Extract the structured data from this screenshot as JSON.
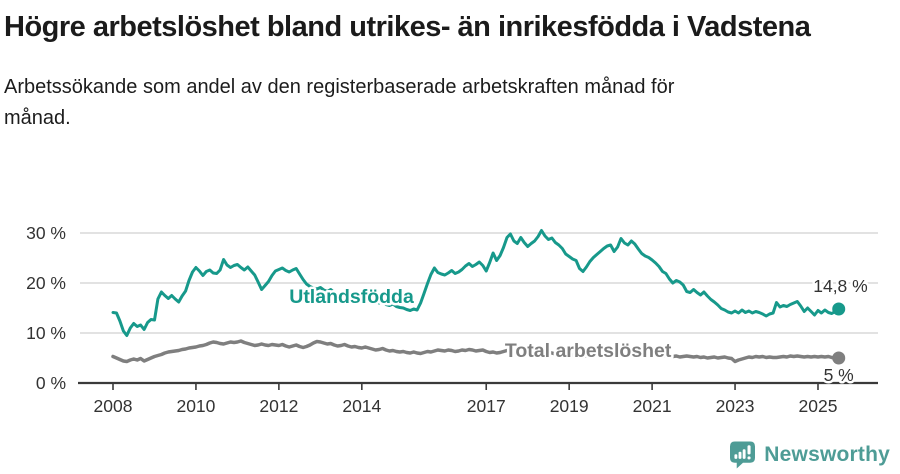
{
  "header": {
    "title": "Högre arbetslöshet bland utrikes- än inrikesfödda i Vadstena",
    "subtitle": "Arbetssökande som andel av den registerbaserade arbetskraften månad för månad."
  },
  "footer": {
    "brand": "Newsworthy",
    "brand_color": "#4e9c96"
  },
  "colors": {
    "series_foreign": "#17998b",
    "series_total": "#7f7f7f",
    "grid": "#d9d9d9",
    "axis": "#3a3a3a",
    "tick_label": "#333333",
    "value_label": "#333333"
  },
  "chart_data": {
    "type": "line",
    "title": "Högre arbetslöshet bland utrikes- än inrikesfödda i Vadstena",
    "subtitle": "Arbetssökande som andel av den registerbaserade arbetskraften månad för månad.",
    "grid": true,
    "legend_position": "inline-labels",
    "x_axis": {
      "start_year": 2008,
      "range": [
        2007.3,
        2026.4
      ],
      "ticks": [
        2008,
        2010,
        2012,
        2014,
        2017,
        2019,
        2021,
        2023,
        2025
      ],
      "tick_labels": [
        "2008",
        "2010",
        "2012",
        "2014",
        "2017",
        "2019",
        "2021",
        "2023",
        "2025"
      ]
    },
    "y_axis": {
      "range": [
        0,
        32
      ],
      "ticks": [
        0,
        10,
        20,
        30
      ],
      "tick_labels": [
        "0 %",
        "10 %",
        "20 %",
        "30 %"
      ],
      "unit": "%"
    },
    "series": [
      {
        "name": "Utlandsfödda",
        "color": "#17998b",
        "line_width": 3,
        "start_year": 2008,
        "points_per_year": 12,
        "last_value_label": "14,8 %",
        "end_label_offset": [
          29,
          -17
        ],
        "values": [
          14.1,
          14.0,
          12.4,
          10.4,
          9.5,
          11.0,
          11.9,
          11.3,
          11.6,
          10.7,
          12.1,
          12.7,
          12.6,
          16.8,
          18.2,
          17.5,
          16.9,
          17.5,
          16.8,
          16.2,
          17.4,
          18.4,
          20.5,
          22.2,
          23.1,
          22.4,
          21.5,
          22.3,
          22.6,
          22.0,
          21.9,
          22.6,
          24.7,
          23.6,
          23.1,
          23.5,
          23.7,
          23.1,
          22.6,
          23.2,
          22.4,
          21.6,
          20.2,
          18.7,
          19.5,
          20.3,
          21.5,
          22.4,
          22.7,
          23.0,
          22.5,
          22.2,
          22.6,
          22.9,
          21.8,
          20.7,
          19.8,
          19.3,
          19.0,
          18.8,
          19.1,
          18.6,
          18.3,
          18.7,
          18.1,
          17.8,
          18.0,
          17.5,
          17.2,
          17.6,
          17.1,
          17.4,
          17.1,
          16.7,
          16.4,
          16.8,
          16.3,
          16.0,
          16.2,
          15.7,
          15.5,
          15.8,
          15.3,
          15.1,
          15.0,
          14.7,
          14.5,
          14.8,
          14.6,
          16.0,
          17.9,
          19.9,
          21.7,
          23.0,
          22.1,
          21.8,
          21.6,
          22.0,
          22.5,
          21.9,
          22.2,
          22.7,
          23.4,
          23.9,
          23.3,
          23.7,
          24.2,
          23.5,
          22.4,
          24.1,
          26.0,
          24.5,
          25.5,
          27.1,
          29.1,
          29.8,
          28.4,
          27.9,
          29.1,
          28.1,
          27.3,
          27.9,
          28.4,
          29.3,
          30.5,
          29.4,
          28.7,
          29.0,
          28.1,
          27.6,
          26.9,
          25.8,
          25.3,
          24.8,
          24.5,
          22.9,
          22.3,
          23.2,
          24.3,
          25.1,
          25.7,
          26.3,
          26.9,
          27.4,
          27.6,
          26.3,
          27.2,
          28.9,
          28.0,
          27.6,
          28.4,
          27.8,
          26.8,
          25.9,
          25.4,
          25.1,
          24.6,
          24.0,
          23.3,
          22.3,
          21.9,
          20.8,
          20.0,
          20.5,
          20.2,
          19.6,
          18.3,
          18.1,
          18.7,
          18.1,
          17.6,
          18.2,
          17.4,
          16.7,
          16.2,
          15.6,
          14.9,
          14.6,
          14.2,
          14.0,
          14.4,
          14.0,
          14.6,
          14.1,
          14.4,
          14.0,
          14.3,
          14.1,
          13.8,
          13.4,
          13.8,
          14.0,
          16.1,
          15.2,
          15.5,
          15.3,
          15.7,
          16.0,
          16.3,
          15.4,
          14.3,
          15.0,
          14.3,
          13.6,
          14.5,
          14.0,
          14.6,
          14.1,
          13.9,
          14.3,
          14.8
        ]
      },
      {
        "name": "Total arbetslöshet",
        "color": "#7f7f7f",
        "line_width": 3.5,
        "start_year": 2008,
        "points_per_year": 12,
        "last_value_label": "5 %",
        "end_label_offset": [
          15,
          23
        ],
        "values": [
          5.3,
          5.0,
          4.7,
          4.4,
          4.3,
          4.6,
          4.8,
          4.6,
          4.9,
          4.4,
          4.7,
          5.0,
          5.3,
          5.5,
          5.7,
          6.0,
          6.2,
          6.3,
          6.4,
          6.5,
          6.7,
          6.8,
          7.0,
          7.1,
          7.2,
          7.4,
          7.5,
          7.7,
          8.0,
          8.2,
          8.1,
          7.9,
          7.8,
          8.0,
          8.2,
          8.1,
          8.2,
          8.4,
          8.1,
          7.9,
          7.7,
          7.5,
          7.6,
          7.8,
          7.6,
          7.5,
          7.7,
          7.6,
          7.5,
          7.7,
          7.4,
          7.2,
          7.4,
          7.6,
          7.3,
          7.1,
          7.3,
          7.6,
          8.0,
          8.3,
          8.2,
          8.0,
          7.8,
          7.9,
          7.6,
          7.4,
          7.5,
          7.7,
          7.4,
          7.2,
          7.3,
          7.1,
          7.0,
          7.2,
          7.0,
          6.8,
          6.6,
          6.7,
          6.9,
          6.6,
          6.4,
          6.5,
          6.3,
          6.2,
          6.3,
          6.1,
          6.0,
          6.2,
          6.0,
          5.9,
          6.1,
          6.3,
          6.2,
          6.4,
          6.6,
          6.5,
          6.4,
          6.6,
          6.5,
          6.3,
          6.4,
          6.6,
          6.5,
          6.7,
          6.6,
          6.4,
          6.5,
          6.6,
          6.3,
          6.1,
          6.2,
          6.0,
          6.1,
          6.3,
          6.5,
          6.4,
          6.2,
          6.3,
          6.1,
          6.2,
          6.0,
          5.9,
          6.1,
          6.0,
          5.8,
          5.9,
          6.1,
          6.0,
          5.8,
          5.7,
          5.8,
          5.6,
          5.5,
          5.6,
          5.4,
          5.5,
          5.3,
          5.4,
          5.6,
          5.7,
          5.5,
          5.6,
          5.8,
          5.9,
          6.0,
          5.9,
          6.1,
          6.4,
          6.3,
          6.5,
          6.6,
          6.4,
          6.3,
          6.1,
          6.0,
          5.9,
          5.8,
          5.7,
          5.6,
          5.5,
          5.4,
          5.5,
          5.3,
          5.4,
          5.2,
          5.3,
          5.4,
          5.3,
          5.2,
          5.3,
          5.1,
          5.2,
          5.0,
          5.1,
          5.2,
          5.0,
          5.1,
          5.2,
          5.0,
          4.9,
          4.3,
          4.6,
          4.8,
          5.0,
          5.2,
          5.1,
          5.3,
          5.2,
          5.3,
          5.1,
          5.2,
          5.1,
          5.1,
          5.2,
          5.3,
          5.2,
          5.4,
          5.3,
          5.4,
          5.3,
          5.2,
          5.3,
          5.2,
          5.3,
          5.2,
          5.3,
          5.2,
          5.3,
          5.1,
          5.0,
          5.0
        ]
      }
    ],
    "annotations": [
      {
        "text": "Utlandsfödda",
        "x": 2012.25,
        "y": 16.0,
        "color": "#17998b"
      },
      {
        "text": "Total arbetslöshet",
        "x": 2017.45,
        "y": 5.2,
        "color": "#7f7f7f"
      }
    ]
  }
}
